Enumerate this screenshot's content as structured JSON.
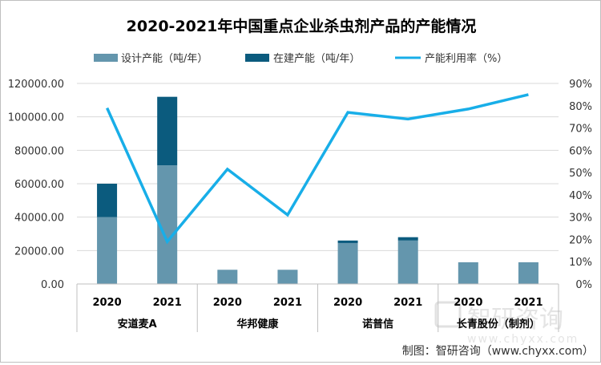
{
  "chart_data": {
    "type": "bar+line",
    "title": "2020-2021年中国重点企业杀虫剂产品的产能情况",
    "legend": [
      {
        "name": "设计产能（吨/年）",
        "color": "#6496ad",
        "kind": "bar"
      },
      {
        "name": "在建产能（吨/年）",
        "color": "#0b5b7e",
        "kind": "bar"
      },
      {
        "name": "产能利用率（%）",
        "color": "#18aee8",
        "kind": "line"
      }
    ],
    "left_axis": {
      "min": 0,
      "max": 120000,
      "step": 20000,
      "format": "0.00",
      "ticks": [
        "0.00",
        "20000.00",
        "40000.00",
        "60000.00",
        "80000.00",
        "100000.00",
        "120000.00"
      ]
    },
    "right_axis": {
      "min": 0,
      "max": 90,
      "step": 10,
      "suffix": "%",
      "ticks": [
        "0%",
        "10%",
        "20%",
        "30%",
        "40%",
        "50%",
        "60%",
        "70%",
        "80%",
        "90%"
      ]
    },
    "groups": [
      {
        "company": "安道麦A",
        "years": [
          "2020",
          "2021"
        ]
      },
      {
        "company": "华邦健康",
        "years": [
          "2020",
          "2021"
        ]
      },
      {
        "company": "诺普信",
        "years": [
          "2020",
          "2021"
        ]
      },
      {
        "company": "长青股份（制剂）",
        "years": [
          "2020",
          "2021"
        ]
      }
    ],
    "series": [
      {
        "name": "设计产能（吨/年）",
        "values": [
          40000,
          71000,
          8500,
          8500,
          24500,
          26000,
          13000,
          13000
        ]
      },
      {
        "name": "在建产能（吨/年）",
        "values": [
          20000,
          41000,
          0,
          0,
          1500,
          2000,
          0,
          0
        ]
      },
      {
        "name": "产能利用率（%）",
        "values": [
          79,
          19,
          51.5,
          31,
          77,
          74,
          78.5,
          85
        ]
      }
    ]
  },
  "watermark": {
    "text": "智研咨询",
    "url": "www.chyxx.com"
  },
  "source": "制图：智研咨询（www.chyxx.com）"
}
